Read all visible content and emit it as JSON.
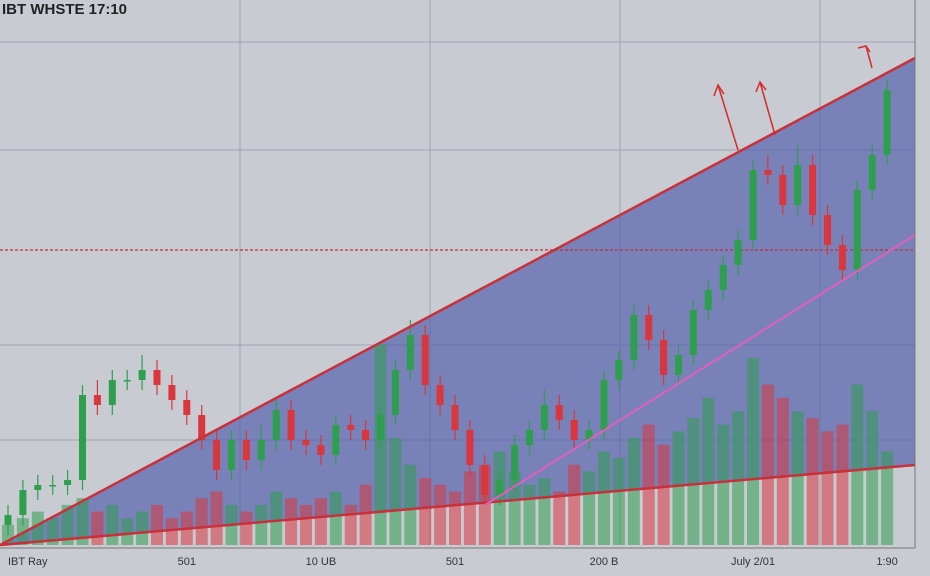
{
  "chart_data": {
    "type": "candlestick",
    "title": "IBT WHSTE 17:10",
    "categories": [
      "IBT Ray",
      null,
      null,
      null,
      null,
      null,
      null,
      null,
      null,
      null,
      null,
      null,
      "501",
      null,
      null,
      null,
      null,
      null,
      null,
      null,
      null,
      "10 UB",
      null,
      null,
      null,
      null,
      null,
      null,
      null,
      null,
      "501",
      null,
      null,
      null,
      null,
      null,
      null,
      null,
      null,
      null,
      "200 B",
      null,
      null,
      null,
      null,
      null,
      null,
      null,
      null,
      null,
      "July 2/01",
      null,
      null,
      null,
      null,
      null,
      null,
      null,
      null,
      "1:90"
    ],
    "open": [
      7,
      9,
      14,
      15,
      15,
      16,
      33,
      31,
      36,
      36,
      38,
      35,
      32,
      29,
      24,
      18,
      24,
      20,
      24,
      30,
      24,
      23,
      21,
      27,
      26,
      24,
      29,
      38,
      45,
      35,
      31,
      26,
      19,
      13,
      16,
      23,
      26,
      31,
      28,
      24,
      26,
      36,
      40,
      49,
      44,
      37,
      41,
      50,
      54,
      59,
      64,
      78,
      77,
      71,
      79,
      69,
      63,
      58,
      74,
      81
    ],
    "high": [
      11,
      16,
      17,
      17,
      18,
      35,
      36,
      38,
      38,
      41,
      40,
      37,
      34,
      31,
      26,
      26,
      26,
      27,
      32,
      32,
      26,
      25,
      29,
      29,
      28,
      31,
      40,
      48,
      47,
      37,
      33,
      28,
      21,
      18,
      25,
      28,
      34,
      33,
      30,
      28,
      38,
      42,
      51,
      51,
      46,
      43,
      52,
      56,
      61,
      66,
      80,
      81,
      79,
      83,
      81,
      71,
      65,
      76,
      83,
      96
    ],
    "low": [
      5,
      7,
      12,
      13,
      13,
      14,
      29,
      29,
      34,
      34,
      33,
      30,
      27,
      22,
      16,
      16,
      18,
      18,
      22,
      22,
      21,
      19,
      19,
      24,
      22,
      22,
      27,
      36,
      33,
      29,
      24,
      17,
      11,
      11,
      14,
      21,
      24,
      26,
      22,
      22,
      24,
      34,
      38,
      42,
      35,
      35,
      39,
      48,
      52,
      57,
      62,
      75,
      69,
      69,
      67,
      61,
      56,
      56,
      72,
      79
    ],
    "close": [
      9,
      14,
      15,
      15,
      16,
      33,
      31,
      36,
      36,
      38,
      35,
      32,
      29,
      24,
      18,
      24,
      20,
      24,
      30,
      24,
      23,
      21,
      27,
      26,
      24,
      29,
      38,
      45,
      35,
      31,
      26,
      19,
      13,
      16,
      23,
      26,
      31,
      28,
      24,
      26,
      36,
      40,
      49,
      44,
      37,
      41,
      50,
      54,
      59,
      64,
      78,
      77,
      71,
      79,
      69,
      63,
      58,
      74,
      81,
      94
    ],
    "volume": [
      15,
      20,
      25,
      20,
      30,
      35,
      25,
      30,
      20,
      25,
      30,
      20,
      25,
      35,
      40,
      30,
      25,
      30,
      40,
      35,
      30,
      35,
      40,
      30,
      45,
      150,
      80,
      60,
      50,
      45,
      40,
      55,
      60,
      70,
      55,
      45,
      50,
      40,
      60,
      55,
      70,
      65,
      80,
      90,
      75,
      85,
      95,
      110,
      90,
      100,
      140,
      120,
      110,
      100,
      95,
      85,
      90,
      120,
      100,
      70
    ],
    "up_color": "#2e9e4f",
    "down_color": "#d9363e",
    "ylim": [
      3,
      110
    ],
    "y2lim": [
      0,
      400
    ],
    "hline": 62
  }
}
